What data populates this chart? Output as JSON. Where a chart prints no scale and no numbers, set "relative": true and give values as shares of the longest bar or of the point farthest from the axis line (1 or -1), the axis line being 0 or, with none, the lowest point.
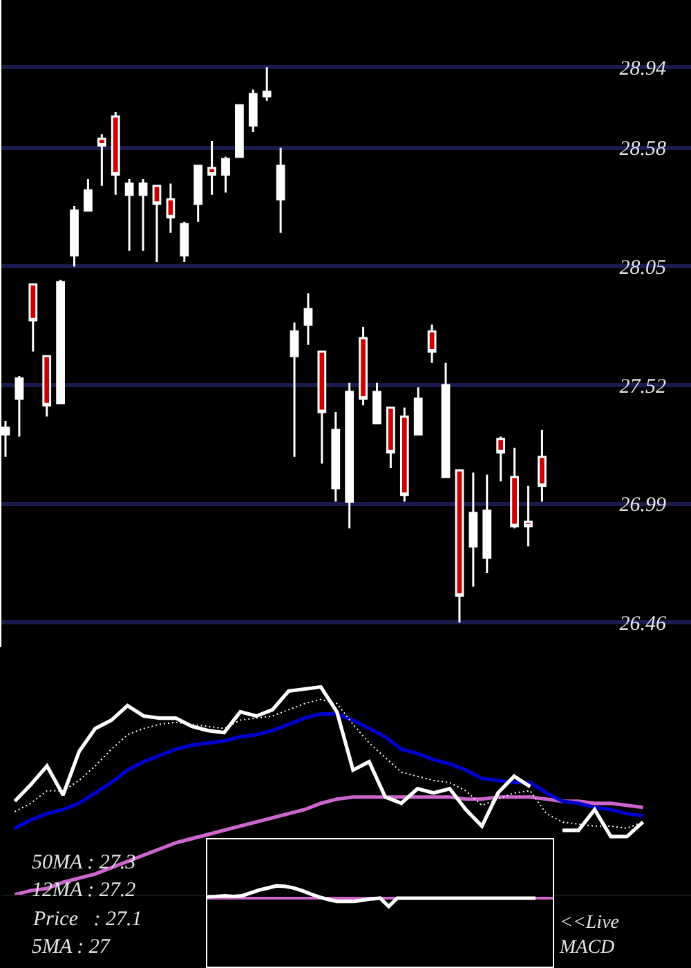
{
  "chart_data": [
    {
      "type": "candlestick",
      "categories": [
        null,
        null,
        null,
        null,
        null,
        null,
        null,
        null,
        null,
        null,
        null,
        null,
        null,
        null,
        null,
        null,
        null,
        null,
        null,
        null,
        null,
        null,
        null,
        null,
        null,
        null,
        null,
        null,
        null,
        null,
        null,
        null,
        null,
        null,
        null,
        null,
        null,
        null,
        null,
        null
      ],
      "ohlc": [
        [
          27.3,
          27.36,
          27.2,
          27.33
        ],
        [
          27.46,
          27.56,
          27.29,
          27.55
        ],
        [
          27.97,
          27.97,
          27.67,
          27.81
        ],
        [
          27.65,
          27.65,
          27.38,
          27.43
        ],
        [
          27.44,
          27.99,
          27.44,
          27.98
        ],
        [
          28.1,
          28.32,
          28.05,
          28.3
        ],
        [
          28.3,
          28.44,
          28.3,
          28.39
        ],
        [
          28.62,
          28.64,
          28.41,
          28.59
        ],
        [
          28.72,
          28.74,
          28.37,
          28.46
        ],
        [
          28.37,
          28.44,
          28.12,
          28.42
        ],
        [
          28.37,
          28.44,
          28.12,
          28.42
        ],
        [
          28.41,
          28.41,
          28.07,
          28.33
        ],
        [
          28.35,
          28.42,
          28.2,
          28.27
        ],
        [
          28.1,
          28.25,
          28.07,
          28.24
        ],
        [
          28.33,
          28.5,
          28.25,
          28.5
        ],
        [
          28.49,
          28.61,
          28.37,
          28.46
        ],
        [
          28.46,
          28.54,
          28.38,
          28.53
        ],
        [
          28.54,
          28.77,
          28.54,
          28.77
        ],
        [
          28.68,
          28.84,
          28.65,
          28.82
        ],
        [
          28.81,
          28.94,
          28.79,
          28.83
        ],
        [
          28.35,
          28.58,
          28.2,
          28.5
        ],
        [
          27.65,
          27.8,
          27.2,
          27.76
        ],
        [
          27.79,
          27.93,
          27.7,
          27.86
        ],
        [
          27.67,
          27.67,
          27.17,
          27.4
        ],
        [
          27.06,
          27.4,
          27.0,
          27.32
        ],
        [
          27.0,
          27.53,
          26.88,
          27.49
        ],
        [
          27.73,
          27.78,
          27.43,
          27.46
        ],
        [
          27.35,
          27.53,
          27.35,
          27.49
        ],
        [
          27.42,
          27.42,
          27.15,
          27.22
        ],
        [
          27.38,
          27.42,
          27.0,
          27.03
        ],
        [
          27.3,
          27.51,
          27.3,
          27.46
        ],
        [
          27.76,
          27.79,
          27.62,
          27.67
        ],
        [
          27.11,
          27.62,
          27.11,
          27.52
        ],
        [
          27.14,
          27.14,
          26.46,
          26.58
        ],
        [
          26.8,
          27.13,
          26.62,
          26.95
        ],
        [
          26.75,
          27.12,
          26.68,
          26.96
        ],
        [
          27.28,
          27.29,
          27.09,
          27.22
        ],
        [
          27.11,
          27.24,
          26.88,
          26.89
        ],
        [
          26.91,
          27.07,
          26.8,
          26.89
        ],
        [
          27.2,
          27.32,
          27.0,
          27.07
        ]
      ],
      "colors": [
        "#ffffff",
        "#ffffff",
        "#cc0000",
        "#cc0000",
        "#ffffff",
        "#ffffff",
        "#ffffff",
        "#cc0000",
        "#cc0000",
        "#ffffff",
        "#ffffff",
        "#cc0000",
        "#cc0000",
        "#ffffff",
        "#ffffff",
        "#cc0000",
        "#ffffff",
        "#ffffff",
        "#ffffff",
        "#ffffff",
        "#ffffff",
        "#ffffff",
        "#ffffff",
        "#cc0000",
        "#ffffff",
        "#ffffff",
        "#cc0000",
        "#ffffff",
        "#cc0000",
        "#cc0000",
        "#ffffff",
        "#cc0000",
        "#ffffff",
        "#cc0000",
        "#ffffff",
        "#ffffff",
        "#cc0000",
        "#cc0000",
        "#cc0000",
        "#cc0000"
      ],
      "ylim": [
        26.35,
        29.24
      ],
      "yticks": [
        26.46,
        26.99,
        27.52,
        28.05,
        28.58,
        28.94
      ],
      "grid": "y",
      "tick_labels": "y"
    },
    {
      "type": "line",
      "relative": true,
      "tick_labels": false,
      "categories": [
        null,
        null,
        null,
        null,
        null,
        null,
        null,
        null,
        null,
        null,
        null,
        null,
        null,
        null,
        null,
        null,
        null,
        null,
        null,
        null,
        null,
        null,
        null,
        null,
        null,
        null,
        null,
        null,
        null,
        null,
        null,
        null,
        null,
        null,
        null,
        null,
        null,
        null,
        null,
        null
      ],
      "series": [
        {
          "color": "#cc66cc",
          "values": [
            0,
            0.02,
            0.03,
            0.06,
            0.08,
            0.1,
            0.13,
            0.16,
            0.19,
            0.22,
            0.25,
            0.27,
            0.29,
            0.31,
            0.33,
            0.35,
            0.37,
            0.39,
            0.41,
            0.44,
            0.46,
            0.47,
            0.47,
            0.47,
            0.47,
            0.47,
            0.47,
            0.47,
            0.46,
            0.46,
            0.47,
            0.47,
            0.47,
            0.46,
            0.45,
            0.45,
            0.44,
            0.44,
            0.43,
            0.42
          ]
        },
        {
          "color": "#0000cc",
          "values": [
            0.32,
            0.36,
            0.39,
            0.41,
            0.44,
            0.49,
            0.54,
            0.6,
            0.64,
            0.67,
            0.7,
            0.72,
            0.73,
            0.74,
            0.76,
            0.77,
            0.79,
            0.82,
            0.85,
            0.87,
            0.87,
            0.84,
            0.8,
            0.76,
            0.7,
            0.68,
            0.65,
            0.63,
            0.6,
            0.56,
            0.55,
            0.54,
            0.54,
            0.49,
            0.45,
            0.44,
            0.42,
            0.41,
            0.39,
            0.38
          ]
        },
        {
          "color": "#ffffff",
          "line_style": "dotted",
          "values": [
            0.4,
            0.44,
            0.5,
            0.5,
            0.55,
            0.62,
            0.7,
            0.77,
            0.8,
            0.82,
            0.83,
            0.82,
            0.81,
            0.8,
            0.84,
            0.85,
            0.86,
            0.89,
            0.92,
            0.94,
            0.92,
            0.82,
            0.73,
            0.66,
            0.59,
            0.57,
            0.55,
            0.54,
            0.5,
            0.43,
            0.46,
            0.49,
            0.5,
            0.39,
            0.35,
            0.34,
            0.33,
            0.33,
            0.32,
            0.35
          ]
        },
        {
          "color": "#ffffff",
          "values": [
            0.45,
            0.53,
            0.62,
            0.48,
            0.69,
            0.8,
            0.84,
            0.91,
            0.86,
            0.85,
            0.85,
            0.81,
            0.79,
            0.78,
            0.88,
            0.86,
            0.89,
            0.98,
            0.99,
            1,
            0.88,
            0.6,
            0.64,
            0.47,
            0.44,
            0.51,
            0.49,
            0.51,
            0.41,
            0.33,
            0.49,
            0.57,
            0.52,
            null,
            0.31,
            0.31,
            0.41,
            0.28,
            0.28,
            0.35
          ]
        }
      ],
      "annotations": [
        "50MA : 27.3",
        "12MA : 27.2",
        "Price   : 27.1",
        "5MA : 27"
      ]
    },
    {
      "type": "line",
      "relative": true,
      "tick_labels": false,
      "categories": [
        null,
        null,
        null,
        null,
        null,
        null,
        null,
        null,
        null,
        null,
        null,
        null,
        null,
        null,
        null,
        null,
        null,
        null,
        null,
        null,
        null,
        null,
        null,
        null,
        null,
        null,
        null,
        null,
        null,
        null,
        null,
        null,
        null,
        null,
        null,
        null,
        null,
        null,
        null,
        null,
        null
      ],
      "series": [
        {
          "color": "#ffffff",
          "values": [
            0.11,
            0.14,
            0.19,
            0.14,
            0.19,
            0.42,
            0.66,
            0.82,
            1,
            0.96,
            0.83,
            0.6,
            0.33,
            0.08,
            -0.11,
            -0.26,
            -0.26,
            -0.26,
            -0.16,
            -0.06,
            0,
            -0.67,
            0,
            0,
            0,
            0,
            0,
            0,
            0,
            0,
            0,
            0,
            0,
            0,
            0,
            0,
            0,
            0,
            0,
            null,
            null
          ]
        }
      ],
      "ref_lines": [
        {
          "axis": "y",
          "value": 0,
          "color": "#cc66cc"
        }
      ],
      "annotations": [
        "<<Live\nMACD"
      ]
    }
  ]
}
